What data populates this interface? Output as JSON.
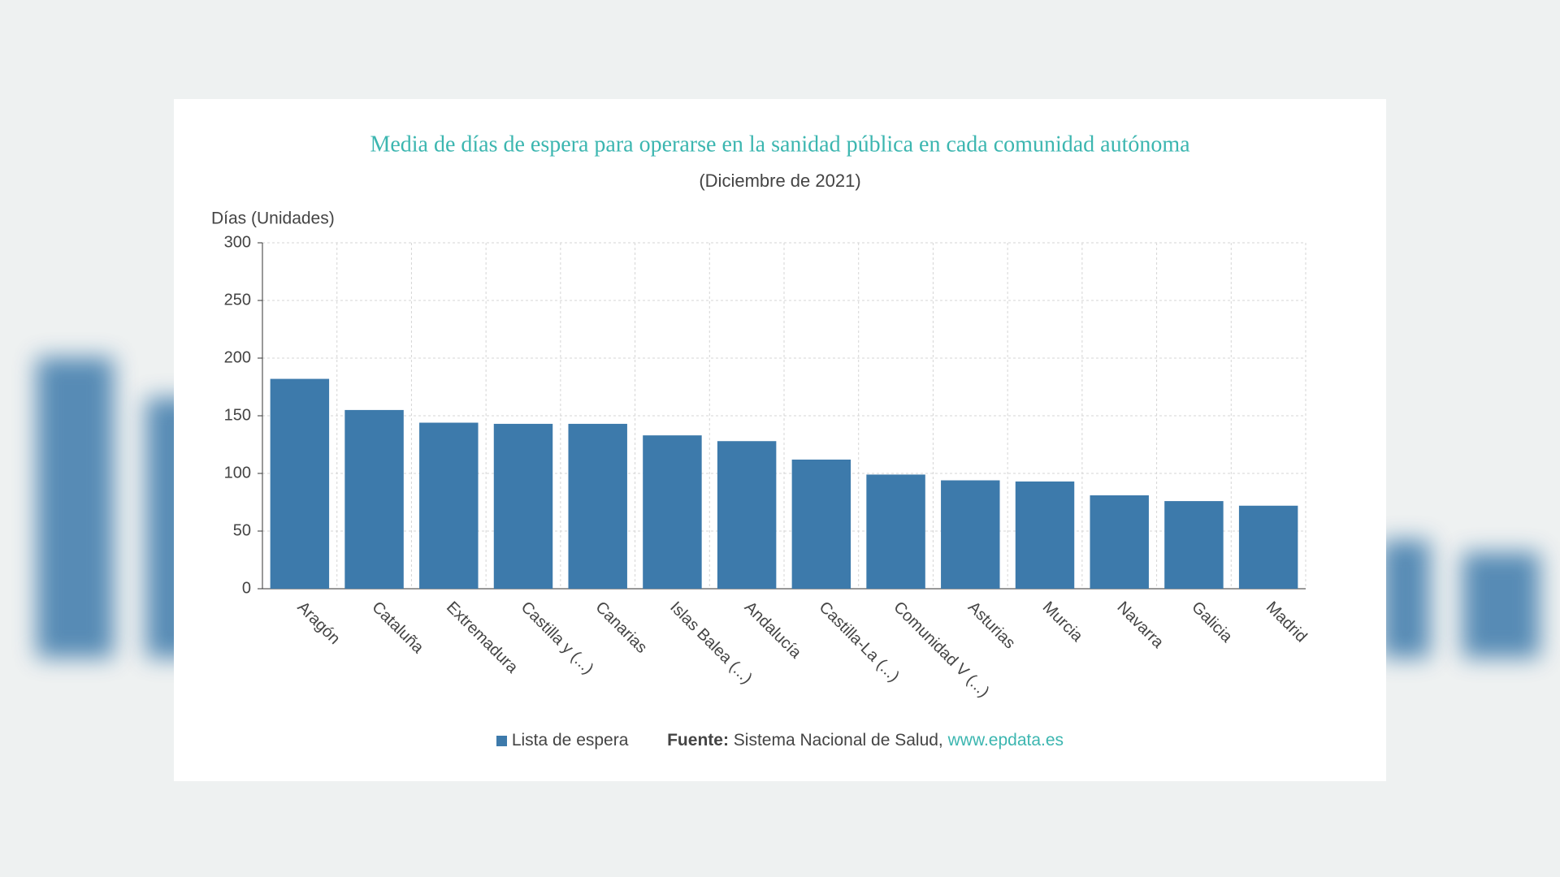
{
  "chart_data": {
    "type": "bar",
    "title": "Media de días de espera para operarse en la sanidad pública en cada comunidad autónoma",
    "subtitle": "(Diciembre de 2021)",
    "y_label": "Días (Unidades)",
    "categories": [
      "Aragón",
      "Cataluña",
      "Extremadura",
      "Castilla y (...)",
      "Canarias",
      "Islas Balea (...)",
      "Andalucía",
      "Castilla-La (...)",
      "Comunidad V (...)",
      "Asturias",
      "Murcia",
      "Navarra",
      "Galicia",
      "Madrid"
    ],
    "series": [
      {
        "name": "Lista de espera",
        "color": "#3d7aab",
        "values": [
          182,
          155,
          144,
          143,
          143,
          133,
          128,
          112,
          99,
          94,
          93,
          81,
          76,
          72
        ]
      }
    ],
    "ylim": [
      0,
      300
    ],
    "yticks": [
      0,
      50,
      100,
      150,
      200,
      250,
      300
    ],
    "grid": true,
    "source": {
      "label": "Fuente:",
      "text": "Sistema Nacional de Salud,",
      "link": "www.epdata.es"
    }
  }
}
